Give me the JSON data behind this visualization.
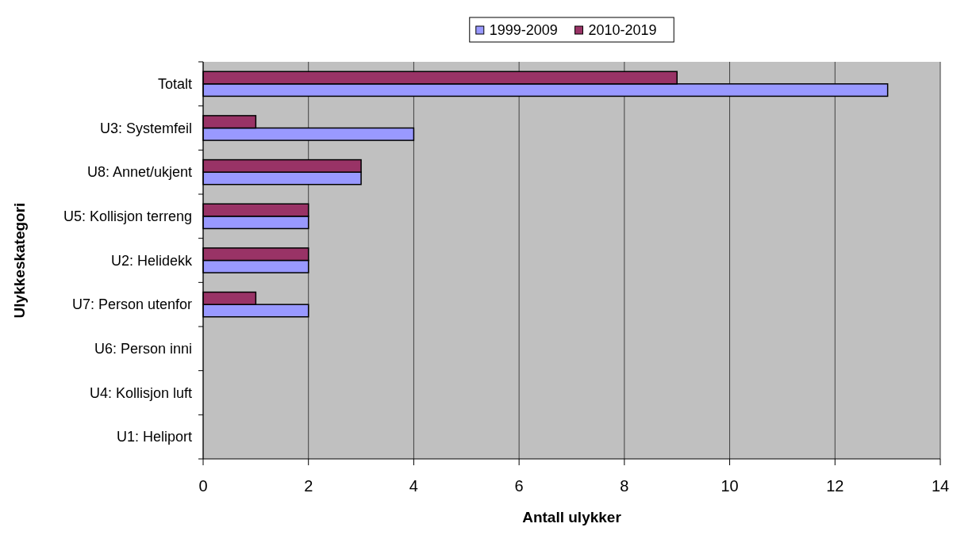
{
  "chart_data": {
    "type": "bar",
    "orientation": "horizontal",
    "xlabel": "Antall ulykker",
    "ylabel": "Ulykkeskategori",
    "categories": [
      "Totalt",
      "U3: Systemfeil",
      "U8: Annet/ukjent",
      "U5: Kollisjon terreng",
      "U2: Helidekk",
      "U7: Person utenfor",
      "U6: Person inni",
      "U4: Kollisjon luft",
      "U1: Heliport"
    ],
    "series": [
      {
        "name": "1999-2009",
        "color": "#9999ff",
        "values": [
          13,
          4,
          3,
          2,
          2,
          2,
          0,
          0,
          0
        ]
      },
      {
        "name": "2010-2019",
        "color": "#993366",
        "values": [
          9,
          1,
          3,
          2,
          2,
          1,
          0,
          0,
          0
        ]
      }
    ],
    "xlim": [
      0,
      14
    ],
    "xticks": [
      0,
      2,
      4,
      6,
      8,
      10,
      12,
      14
    ],
    "grid": "x",
    "legend": "top"
  }
}
